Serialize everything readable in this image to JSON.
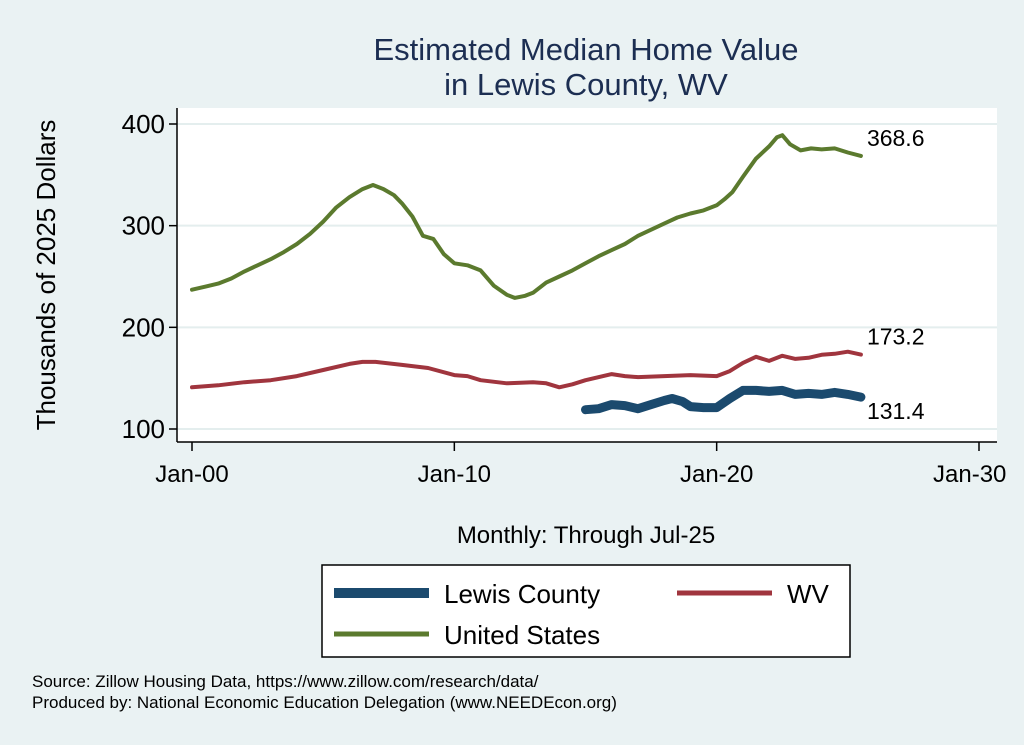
{
  "chart_data": {
    "type": "line",
    "title_lines": [
      "Estimated Median Home Value",
      "in Lewis County, WV"
    ],
    "ylabel": "Thousands of 2025 Dollars",
    "xlabel": "Monthly: Through Jul-25",
    "x_ticks": [
      {
        "value": 2000,
        "label": "Jan-00"
      },
      {
        "value": 2010,
        "label": "Jan-10"
      },
      {
        "value": 2020,
        "label": "Jan-20"
      },
      {
        "value": 2030,
        "label": "Jan-30"
      }
    ],
    "y_ticks": [
      100,
      200,
      300,
      400
    ],
    "xlim": [
      2000,
      2030
    ],
    "ylim": [
      100,
      400
    ],
    "grid": true,
    "series": [
      {
        "name": "United States",
        "color": "#5b7a2e",
        "end_label": "368.6",
        "points": [
          [
            2000.0,
            237
          ],
          [
            2000.5,
            240
          ],
          [
            2001.0,
            243
          ],
          [
            2001.5,
            248
          ],
          [
            2002.0,
            255
          ],
          [
            2002.5,
            261
          ],
          [
            2003.0,
            267
          ],
          [
            2003.5,
            274
          ],
          [
            2004.0,
            282
          ],
          [
            2004.5,
            292
          ],
          [
            2005.0,
            304
          ],
          [
            2005.5,
            318
          ],
          [
            2006.0,
            328
          ],
          [
            2006.5,
            336
          ],
          [
            2006.9,
            340
          ],
          [
            2007.3,
            336
          ],
          [
            2007.7,
            330
          ],
          [
            2008.0,
            322
          ],
          [
            2008.4,
            309
          ],
          [
            2008.8,
            290
          ],
          [
            2009.2,
            287
          ],
          [
            2009.6,
            272
          ],
          [
            2010.0,
            263
          ],
          [
            2010.5,
            261
          ],
          [
            2011.0,
            256
          ],
          [
            2011.5,
            241
          ],
          [
            2012.0,
            232
          ],
          [
            2012.3,
            229
          ],
          [
            2012.7,
            231
          ],
          [
            2013.0,
            234
          ],
          [
            2013.5,
            244
          ],
          [
            2014.0,
            250
          ],
          [
            2014.5,
            256
          ],
          [
            2015.0,
            263
          ],
          [
            2015.5,
            270
          ],
          [
            2016.0,
            276
          ],
          [
            2016.5,
            282
          ],
          [
            2017.0,
            290
          ],
          [
            2017.5,
            296
          ],
          [
            2018.0,
            302
          ],
          [
            2018.5,
            308
          ],
          [
            2019.0,
            312
          ],
          [
            2019.5,
            315
          ],
          [
            2020.0,
            320
          ],
          [
            2020.3,
            326
          ],
          [
            2020.6,
            333
          ],
          [
            2021.0,
            348
          ],
          [
            2021.5,
            366
          ],
          [
            2022.0,
            378
          ],
          [
            2022.3,
            387
          ],
          [
            2022.5,
            389
          ],
          [
            2022.8,
            380
          ],
          [
            2023.2,
            374
          ],
          [
            2023.6,
            376
          ],
          [
            2024.0,
            375
          ],
          [
            2024.5,
            376
          ],
          [
            2025.0,
            372
          ],
          [
            2025.5,
            368.6
          ]
        ]
      },
      {
        "name": "WV",
        "color": "#a0353e",
        "end_label": "173.2",
        "points": [
          [
            2000.0,
            141
          ],
          [
            2001.0,
            143
          ],
          [
            2002.0,
            146
          ],
          [
            2003.0,
            148
          ],
          [
            2004.0,
            152
          ],
          [
            2005.0,
            158
          ],
          [
            2006.0,
            164
          ],
          [
            2006.5,
            166
          ],
          [
            2007.0,
            166
          ],
          [
            2008.0,
            163
          ],
          [
            2009.0,
            160
          ],
          [
            2010.0,
            153
          ],
          [
            2010.5,
            152
          ],
          [
            2011.0,
            148
          ],
          [
            2012.0,
            145
          ],
          [
            2013.0,
            146
          ],
          [
            2013.5,
            145
          ],
          [
            2014.0,
            141
          ],
          [
            2014.5,
            144
          ],
          [
            2015.0,
            148
          ],
          [
            2016.0,
            154
          ],
          [
            2016.5,
            152
          ],
          [
            2017.0,
            151
          ],
          [
            2018.0,
            152
          ],
          [
            2019.0,
            153
          ],
          [
            2020.0,
            152
          ],
          [
            2020.5,
            157
          ],
          [
            2021.0,
            165
          ],
          [
            2021.5,
            171
          ],
          [
            2022.0,
            167
          ],
          [
            2022.5,
            172
          ],
          [
            2023.0,
            169
          ],
          [
            2023.5,
            170
          ],
          [
            2024.0,
            173
          ],
          [
            2024.5,
            174
          ],
          [
            2025.0,
            176
          ],
          [
            2025.5,
            173.2
          ]
        ]
      },
      {
        "name": "Lewis County",
        "color": "#1b4a6e",
        "end_label": "131.4",
        "points": [
          [
            2015.0,
            119
          ],
          [
            2015.5,
            120
          ],
          [
            2016.0,
            124
          ],
          [
            2016.5,
            123
          ],
          [
            2017.0,
            120
          ],
          [
            2017.5,
            124
          ],
          [
            2018.0,
            128
          ],
          [
            2018.3,
            130
          ],
          [
            2018.7,
            127
          ],
          [
            2019.0,
            122
          ],
          [
            2019.5,
            121
          ],
          [
            2020.0,
            121
          ],
          [
            2020.5,
            130
          ],
          [
            2021.0,
            138
          ],
          [
            2021.5,
            138
          ],
          [
            2022.0,
            137
          ],
          [
            2022.5,
            138
          ],
          [
            2023.0,
            134
          ],
          [
            2023.5,
            135
          ],
          [
            2024.0,
            134
          ],
          [
            2024.5,
            136
          ],
          [
            2025.0,
            134
          ],
          [
            2025.5,
            131.4
          ]
        ]
      }
    ],
    "legend": [
      {
        "name": "Lewis County",
        "color": "#1b4a6e"
      },
      {
        "name": "WV",
        "color": "#a0353e"
      },
      {
        "name": "United States",
        "color": "#5b7a2e"
      }
    ]
  },
  "footer": {
    "source": "Source: Zillow Housing Data, https://www.zillow.com/research/data/",
    "produced_by": "Produced by: National Economic Education Delegation (www.NEEDEcon.org)"
  }
}
